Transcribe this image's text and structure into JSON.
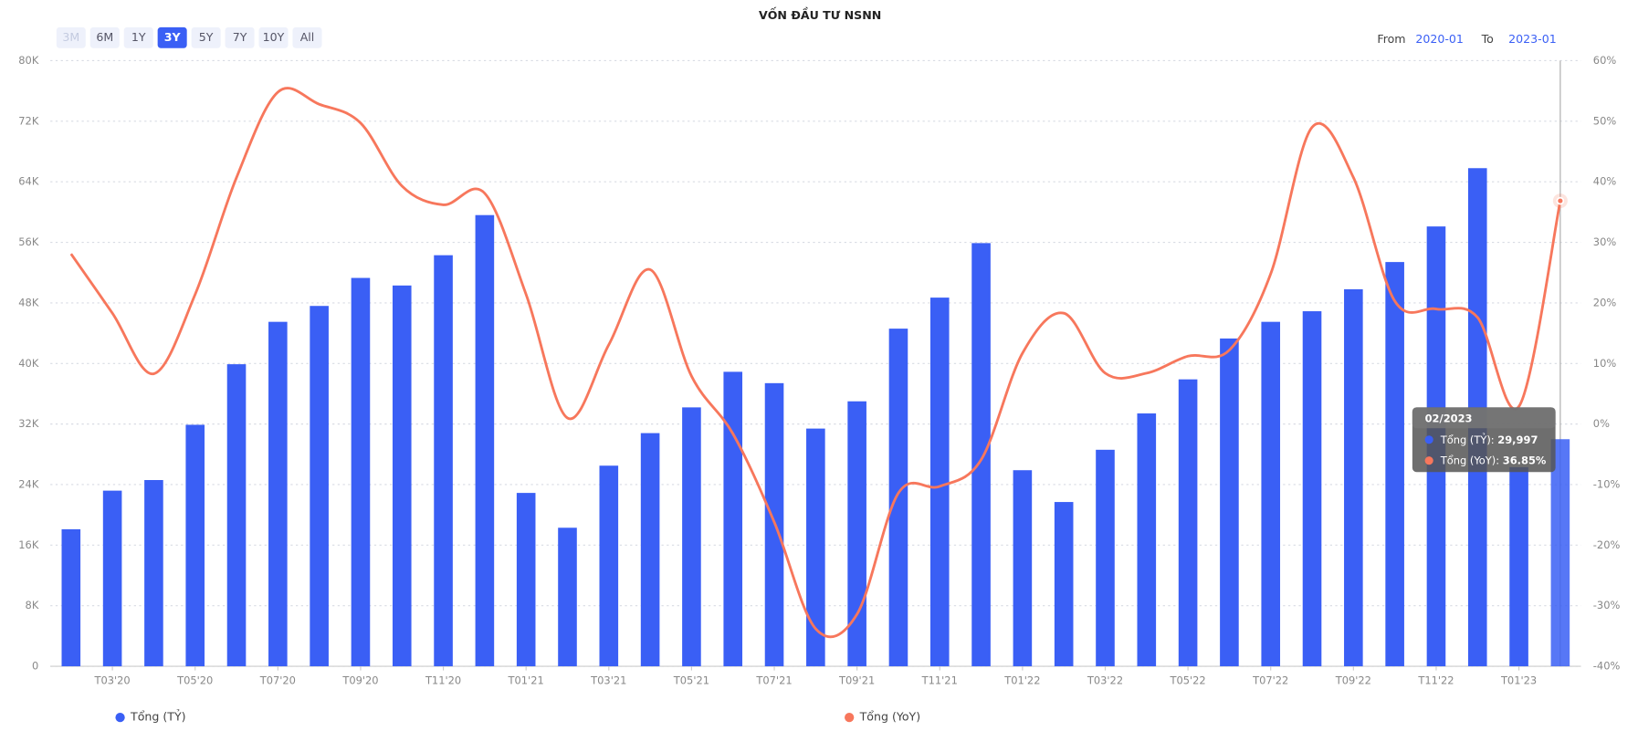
{
  "chart_data": {
    "type": "bar_line",
    "title": "VỐN ĐẦU TƯ NSNN",
    "range_selector": {
      "buttons": [
        "3M",
        "6M",
        "1Y",
        "3Y",
        "5Y",
        "7Y",
        "10Y",
        "All"
      ],
      "active_index": 3,
      "disabled_index": 0
    },
    "date_range": {
      "from_label": "From",
      "from": "2020-01",
      "to_label": "To",
      "to": "2023-01"
    },
    "categories": [
      null,
      "T03'20",
      null,
      "T05'20",
      null,
      "T07'20",
      null,
      "T09'20",
      null,
      "T11'20",
      null,
      "T01'21",
      null,
      "T03'21",
      null,
      "T05'21",
      null,
      "T07'21",
      null,
      "T09'21",
      null,
      "T11'21",
      null,
      "T01'22",
      null,
      "T03'22",
      null,
      "T05'22",
      null,
      "T07'22",
      null,
      "T09'22",
      null,
      "T11'22",
      null,
      "T01'23",
      null
    ],
    "series": [
      {
        "name": "Tổng (TỶ)",
        "color": "#3a5ff5",
        "values": [
          18100,
          23200,
          24600,
          31900,
          39900,
          45500,
          47600,
          51300,
          50300,
          54300,
          59600,
          22900,
          18300,
          26500,
          30800,
          34200,
          38900,
          37400,
          31400,
          35000,
          44600,
          48700,
          55900,
          25900,
          21700,
          28600,
          33400,
          37900,
          43300,
          45500,
          46900,
          49800,
          53400,
          58100,
          65800,
          26300,
          29997
        ]
      },
      {
        "name": "Tổng (YoY)",
        "color": "#f7775c",
        "axis": "y2",
        "values": [
          28.1,
          18.3,
          8.3,
          21.4,
          40.7,
          54.8,
          52.8,
          49.7,
          39.3,
          36.2,
          38.1,
          21.4,
          1.0,
          13.1,
          25.5,
          7.9,
          -1.6,
          -16.2,
          -33.8,
          -31.4,
          -11.4,
          -10.3,
          -5.9,
          11.7,
          18.3,
          8.4,
          8.4,
          11.2,
          12.2,
          24.8,
          49.0,
          40.7,
          20.3,
          19.0,
          17.6,
          2.9,
          36.85
        ]
      }
    ],
    "ylim": [
      0,
      80000
    ],
    "yticks": [
      0,
      {
        "value": 8000,
        "label": "8K"
      },
      {
        "value": 16000,
        "label": "16K"
      },
      {
        "value": 24000,
        "label": "24K"
      },
      {
        "value": 32000,
        "label": "32K"
      },
      {
        "value": 40000,
        "label": "40K"
      },
      {
        "value": 48000,
        "label": "48K"
      },
      {
        "value": 56000,
        "label": "56K"
      },
      {
        "value": 64000,
        "label": "64K"
      },
      {
        "value": 72000,
        "label": "72K"
      },
      {
        "value": 80000,
        "label": "80K"
      }
    ],
    "y2lim": [
      -40,
      60
    ],
    "y2ticks": [
      {
        "value": -40,
        "label": "-40%"
      },
      {
        "value": -30,
        "label": "-30%"
      },
      {
        "value": -20,
        "label": "-20%"
      },
      {
        "value": -10,
        "label": "-10%"
      },
      {
        "value": 0,
        "label": "0%"
      },
      {
        "value": 10,
        "label": "10%"
      },
      {
        "value": 20,
        "label": "20%"
      },
      {
        "value": 30,
        "label": "30%"
      },
      {
        "value": 40,
        "label": "40%"
      },
      {
        "value": 50,
        "label": "50%"
      },
      {
        "value": 60,
        "label": "60%"
      }
    ],
    "grid": true,
    "tooltip": {
      "title": "02/2023",
      "rows": [
        {
          "label": "Tổng (TỶ): ",
          "value": "29,997"
        },
        {
          "label": "Tổng (YoY): ",
          "value": "36.85%"
        }
      ]
    }
  }
}
